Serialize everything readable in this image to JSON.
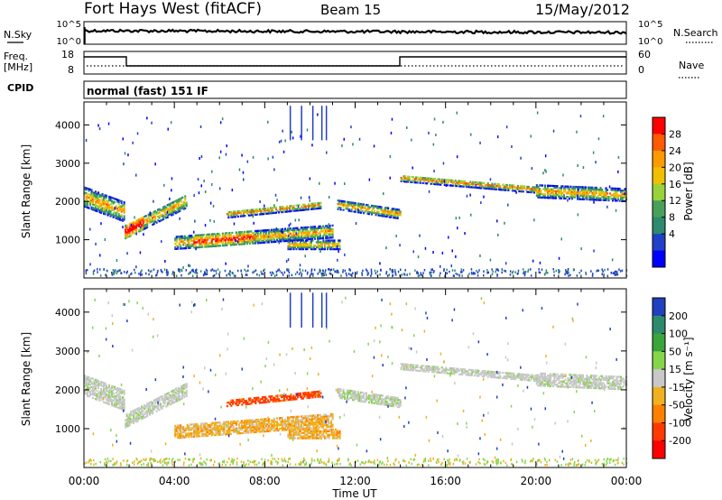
{
  "header": {
    "title": "Fort Hays West (fitACF)",
    "beam": "Beam 15",
    "date": "15/May/2012"
  },
  "left_labels": {
    "nsky": "N.Sky",
    "freq_line1": "Freq.",
    "freq_line2": "[MHz]",
    "cpid": "CPID"
  },
  "right_labels": {
    "nsearch": "N.Search",
    "nave": "Nave"
  },
  "cpid_text": "normal (fast) 151 IF",
  "noise_panel": {
    "left_ticks": [
      "10^5",
      "10^0"
    ],
    "right_ticks": [
      "10^5",
      "10^0"
    ]
  },
  "freq_panel": {
    "left_ticks": [
      "18",
      "8"
    ],
    "right_ticks": [
      "60",
      "0"
    ]
  },
  "chart_data": [
    {
      "type": "heatmap",
      "name": "power",
      "ylabel": "Slant Range [km]",
      "xlabel": "",
      "x_ticks": [
        "00:00",
        "04:00",
        "08:00",
        "12:00",
        "16:00",
        "20:00",
        "00:00"
      ],
      "y_ticks": [
        1000,
        2000,
        3000,
        4000
      ],
      "ylim": [
        0,
        4600
      ],
      "colorbar_label": "Power [dB]",
      "colorbar_ticks": [
        "28",
        "24",
        "20",
        "16",
        "12",
        "8",
        "4"
      ],
      "colorbar_colors": [
        "#ff0000",
        "#ff5a00",
        "#ff9a00",
        "#f0c000",
        "#9ad23c",
        "#48a05a",
        "#2e8a6e",
        "#2040c8",
        "#0000ff"
      ]
    },
    {
      "type": "heatmap",
      "name": "velocity",
      "ylabel": "Slant Range [km]",
      "xlabel": "Time UT",
      "x_ticks": [
        "00:00",
        "04:00",
        "08:00",
        "12:00",
        "16:00",
        "20:00",
        "00:00"
      ],
      "y_ticks": [
        1000,
        2000,
        3000,
        4000
      ],
      "ylim": [
        0,
        4600
      ],
      "colorbar_label": "Velocity [m s⁻¹]",
      "colorbar_ticks": [
        "200",
        "100",
        "50",
        "15",
        "-15",
        "-50",
        "-100",
        "-200"
      ],
      "colorbar_colors": [
        "#2040c0",
        "#2e8a6e",
        "#39a53a",
        "#86d64a",
        "#c8c8c8",
        "#f0b020",
        "#ff8000",
        "#ff3a00",
        "#ff0000"
      ]
    }
  ]
}
